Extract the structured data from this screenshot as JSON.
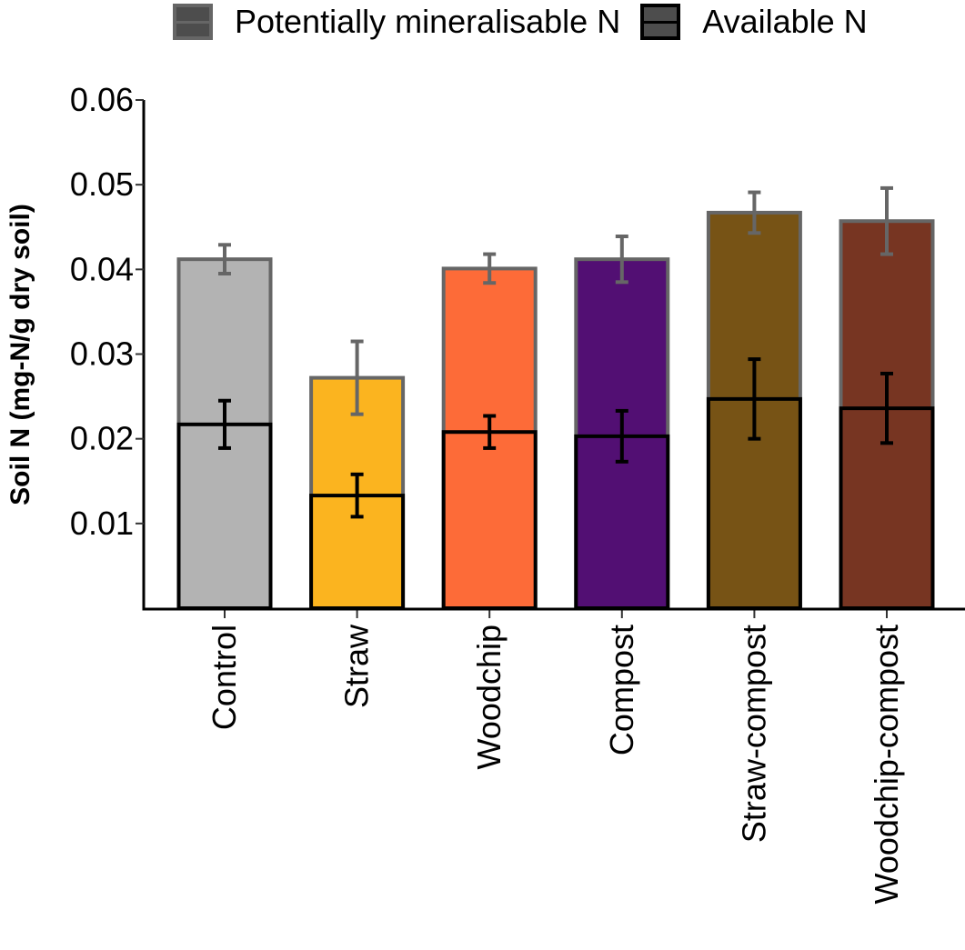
{
  "chart_data": {
    "type": "bar",
    "subtype": "overlaid-stacked-with-error-bars",
    "title": "",
    "xlabel": "",
    "ylabel": "Soil N (mg-N/g dry soil)",
    "ylim": [
      0,
      0.06
    ],
    "yticks": [
      0.01,
      0.02,
      0.03,
      0.04,
      0.05,
      0.06
    ],
    "ytick_labels": [
      "0.01",
      "0.02",
      "0.03",
      "0.04",
      "0.05",
      "0.06"
    ],
    "grid": false,
    "legend_position": "top",
    "categories": [
      "Control",
      "Straw",
      "Woodchip",
      "Compost",
      "Straw-compost",
      "Woodchip-compost"
    ],
    "category_colors": [
      "#b3b3b3",
      "#fbb41f",
      "#fd6b38",
      "#520f73",
      "#775315",
      "#773522"
    ],
    "series": [
      {
        "name": "Potentially mineralisable N",
        "outline_color": "#666666",
        "values": [
          0.0412,
          0.0272,
          0.0401,
          0.0412,
          0.0467,
          0.0457
        ],
        "errors": [
          0.0017,
          0.0043,
          0.0017,
          0.0027,
          0.0024,
          0.0039
        ]
      },
      {
        "name": "Available N",
        "outline_color": "#000000",
        "values": [
          0.0217,
          0.0133,
          0.0208,
          0.0203,
          0.0247,
          0.0236
        ],
        "errors": [
          0.0028,
          0.0025,
          0.0019,
          0.003,
          0.0047,
          0.0041
        ]
      }
    ]
  }
}
